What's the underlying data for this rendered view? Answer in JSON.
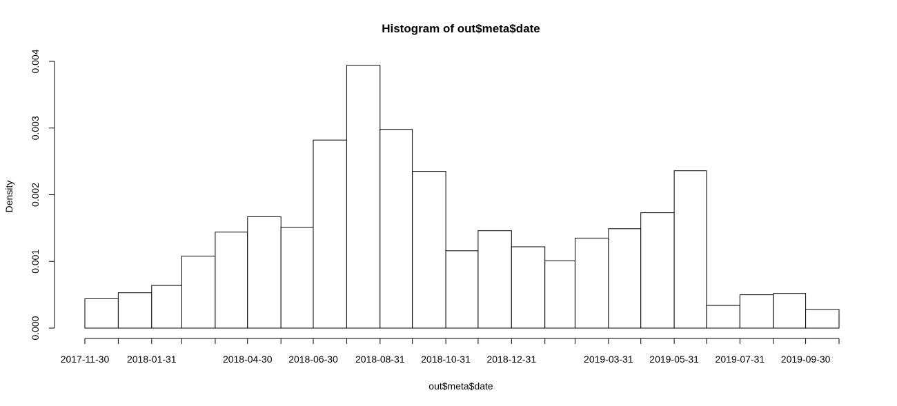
{
  "chart_data": {
    "type": "bar",
    "title": "Histogram of out$meta$date",
    "xlabel": "out$meta$date",
    "ylabel": "Density",
    "grid": false,
    "y_ticks": [
      "0.000",
      "0.001",
      "0.002",
      "0.003",
      "0.004"
    ],
    "ylim": [
      0,
      0.004
    ],
    "xlim": [
      "2017-11-30",
      "2019-10-31"
    ],
    "x_ticks": [
      {
        "date": "2017-11-30",
        "label": "2017-11-30"
      },
      {
        "date": "2017-12-31",
        "label": ""
      },
      {
        "date": "2018-01-31",
        "label": "2018-01-31"
      },
      {
        "date": "2018-02-28",
        "label": ""
      },
      {
        "date": "2018-03-31",
        "label": ""
      },
      {
        "date": "2018-04-30",
        "label": "2018-04-30"
      },
      {
        "date": "2018-05-31",
        "label": ""
      },
      {
        "date": "2018-06-30",
        "label": "2018-06-30"
      },
      {
        "date": "2018-07-31",
        "label": ""
      },
      {
        "date": "2018-08-31",
        "label": "2018-08-31"
      },
      {
        "date": "2018-09-30",
        "label": ""
      },
      {
        "date": "2018-10-31",
        "label": "2018-10-31"
      },
      {
        "date": "2018-11-30",
        "label": ""
      },
      {
        "date": "2018-12-31",
        "label": "2018-12-31"
      },
      {
        "date": "2019-01-31",
        "label": ""
      },
      {
        "date": "2019-02-28",
        "label": ""
      },
      {
        "date": "2019-03-31",
        "label": "2019-03-31"
      },
      {
        "date": "2019-04-30",
        "label": ""
      },
      {
        "date": "2019-05-31",
        "label": "2019-05-31"
      },
      {
        "date": "2019-06-30",
        "label": ""
      },
      {
        "date": "2019-07-31",
        "label": "2019-07-31"
      },
      {
        "date": "2019-08-31",
        "label": ""
      },
      {
        "date": "2019-09-30",
        "label": "2019-09-30"
      },
      {
        "date": "2019-10-31",
        "label": ""
      }
    ],
    "bins": [
      {
        "start": "2017-11-30",
        "end": "2017-12-31",
        "density": 0.00044
      },
      {
        "start": "2017-12-31",
        "end": "2018-01-31",
        "density": 0.00053
      },
      {
        "start": "2018-01-31",
        "end": "2018-02-28",
        "density": 0.00064
      },
      {
        "start": "2018-02-28",
        "end": "2018-03-31",
        "density": 0.00108
      },
      {
        "start": "2018-03-31",
        "end": "2018-04-30",
        "density": 0.00144
      },
      {
        "start": "2018-04-30",
        "end": "2018-05-31",
        "density": 0.00167
      },
      {
        "start": "2018-05-31",
        "end": "2018-06-30",
        "density": 0.00151
      },
      {
        "start": "2018-06-30",
        "end": "2018-07-31",
        "density": 0.00282
      },
      {
        "start": "2018-07-31",
        "end": "2018-08-31",
        "density": 0.00394
      },
      {
        "start": "2018-08-31",
        "end": "2018-09-30",
        "density": 0.00298
      },
      {
        "start": "2018-09-30",
        "end": "2018-10-31",
        "density": 0.00235
      },
      {
        "start": "2018-10-31",
        "end": "2018-11-30",
        "density": 0.00116
      },
      {
        "start": "2018-11-30",
        "end": "2018-12-31",
        "density": 0.00146
      },
      {
        "start": "2018-12-31",
        "end": "2019-01-31",
        "density": 0.00122
      },
      {
        "start": "2019-01-31",
        "end": "2019-02-28",
        "density": 0.00101
      },
      {
        "start": "2019-02-28",
        "end": "2019-03-31",
        "density": 0.00135
      },
      {
        "start": "2019-03-31",
        "end": "2019-04-30",
        "density": 0.00149
      },
      {
        "start": "2019-04-30",
        "end": "2019-05-31",
        "density": 0.00173
      },
      {
        "start": "2019-05-31",
        "end": "2019-06-30",
        "density": 0.00236
      },
      {
        "start": "2019-06-30",
        "end": "2019-07-31",
        "density": 0.00034
      },
      {
        "start": "2019-07-31",
        "end": "2019-08-31",
        "density": 0.0005
      },
      {
        "start": "2019-08-31",
        "end": "2019-09-30",
        "density": 0.00052
      },
      {
        "start": "2019-09-30",
        "end": "2019-10-31",
        "density": 0.00028
      }
    ],
    "colors": {
      "bar_fill": "#ffffff",
      "bar_stroke": "#000000"
    }
  }
}
